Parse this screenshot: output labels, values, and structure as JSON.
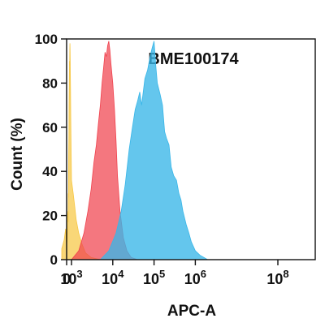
{
  "chart_data": {
    "type": "area",
    "title": "BME100174",
    "xlabel": "APC-A",
    "ylabel": "Count (%)",
    "ylim": [
      0,
      100
    ],
    "xlim": [
      -1000,
      100000000
    ],
    "x_scale": "biexponential",
    "y_ticks": [
      {
        "value": 0,
        "label": "0"
      },
      {
        "value": 20,
        "label": "20"
      },
      {
        "value": 40,
        "label": "40"
      },
      {
        "value": 60,
        "label": "60"
      },
      {
        "value": 80,
        "label": "80"
      },
      {
        "value": 100,
        "label": "100"
      }
    ],
    "x_ticks": [
      {
        "value": 0,
        "base": "0",
        "exp": ""
      },
      {
        "value": 1000,
        "base": "10",
        "exp": "3"
      },
      {
        "value": 10000,
        "base": "10",
        "exp": "4"
      },
      {
        "value": 100000,
        "base": "10",
        "exp": "5"
      },
      {
        "value": 1000000,
        "base": "10",
        "exp": "6"
      },
      {
        "value": 100000000,
        "base": "10",
        "exp": "8"
      }
    ],
    "series": [
      {
        "color": "#f7c744",
        "opacity": 0.72,
        "points": [
          [
            -1000,
            5
          ],
          [
            -500,
            9
          ],
          [
            -200,
            14
          ],
          [
            -100,
            10
          ],
          [
            0,
            6
          ],
          [
            50,
            13
          ],
          [
            100,
            8
          ],
          [
            150,
            12
          ],
          [
            200,
            20
          ],
          [
            260,
            22
          ],
          [
            300,
            17
          ],
          [
            340,
            30
          ],
          [
            380,
            28
          ],
          [
            420,
            46
          ],
          [
            460,
            56
          ],
          [
            500,
            70
          ],
          [
            540,
            77
          ],
          [
            580,
            90
          ],
          [
            620,
            88
          ],
          [
            650,
            95
          ],
          [
            680,
            98
          ],
          [
            720,
            94
          ],
          [
            760,
            84
          ],
          [
            800,
            78
          ],
          [
            850,
            64
          ],
          [
            900,
            54
          ],
          [
            950,
            45
          ],
          [
            1000,
            36
          ],
          [
            1100,
            30
          ],
          [
            1200,
            24
          ],
          [
            1300,
            18
          ],
          [
            1500,
            12
          ],
          [
            1800,
            7
          ],
          [
            2200,
            3
          ],
          [
            3000,
            1
          ],
          [
            5000,
            0
          ]
        ]
      },
      {
        "color": "#f0424e",
        "opacity": 0.72,
        "points": [
          [
            1000,
            0
          ],
          [
            1500,
            4
          ],
          [
            2000,
            12
          ],
          [
            2500,
            22
          ],
          [
            3000,
            32
          ],
          [
            3500,
            44
          ],
          [
            4000,
            52
          ],
          [
            4500,
            62
          ],
          [
            5000,
            70
          ],
          [
            5500,
            80
          ],
          [
            6000,
            87
          ],
          [
            6500,
            94
          ],
          [
            7000,
            92
          ],
          [
            7500,
            97
          ],
          [
            8000,
            99
          ],
          [
            8500,
            95
          ],
          [
            9000,
            89
          ],
          [
            10000,
            80
          ],
          [
            11000,
            68
          ],
          [
            12000,
            54
          ],
          [
            13000,
            38
          ],
          [
            15000,
            22
          ],
          [
            18000,
            10
          ],
          [
            22000,
            4
          ],
          [
            28000,
            1
          ],
          [
            40000,
            0
          ]
        ]
      },
      {
        "color": "#38b6e8",
        "opacity": 0.78,
        "points": [
          [
            5000,
            0
          ],
          [
            8000,
            4
          ],
          [
            12000,
            12
          ],
          [
            16000,
            22
          ],
          [
            20000,
            34
          ],
          [
            25000,
            50
          ],
          [
            30000,
            60
          ],
          [
            35000,
            68
          ],
          [
            40000,
            72
          ],
          [
            45000,
            76
          ],
          [
            50000,
            70
          ],
          [
            60000,
            82
          ],
          [
            70000,
            86
          ],
          [
            80000,
            92
          ],
          [
            90000,
            96
          ],
          [
            100000,
            99
          ],
          [
            110000,
            88
          ],
          [
            120000,
            80
          ],
          [
            140000,
            75
          ],
          [
            160000,
            70
          ],
          [
            180000,
            58
          ],
          [
            200000,
            55
          ],
          [
            230000,
            52
          ],
          [
            260000,
            42
          ],
          [
            300000,
            38
          ],
          [
            350000,
            36
          ],
          [
            400000,
            30
          ],
          [
            450000,
            27
          ],
          [
            500000,
            22
          ],
          [
            600000,
            16
          ],
          [
            700000,
            12
          ],
          [
            800000,
            8
          ],
          [
            1000000,
            4
          ],
          [
            1300000,
            2
          ],
          [
            2000000,
            0
          ]
        ]
      }
    ],
    "grid": false,
    "legend": "none"
  }
}
